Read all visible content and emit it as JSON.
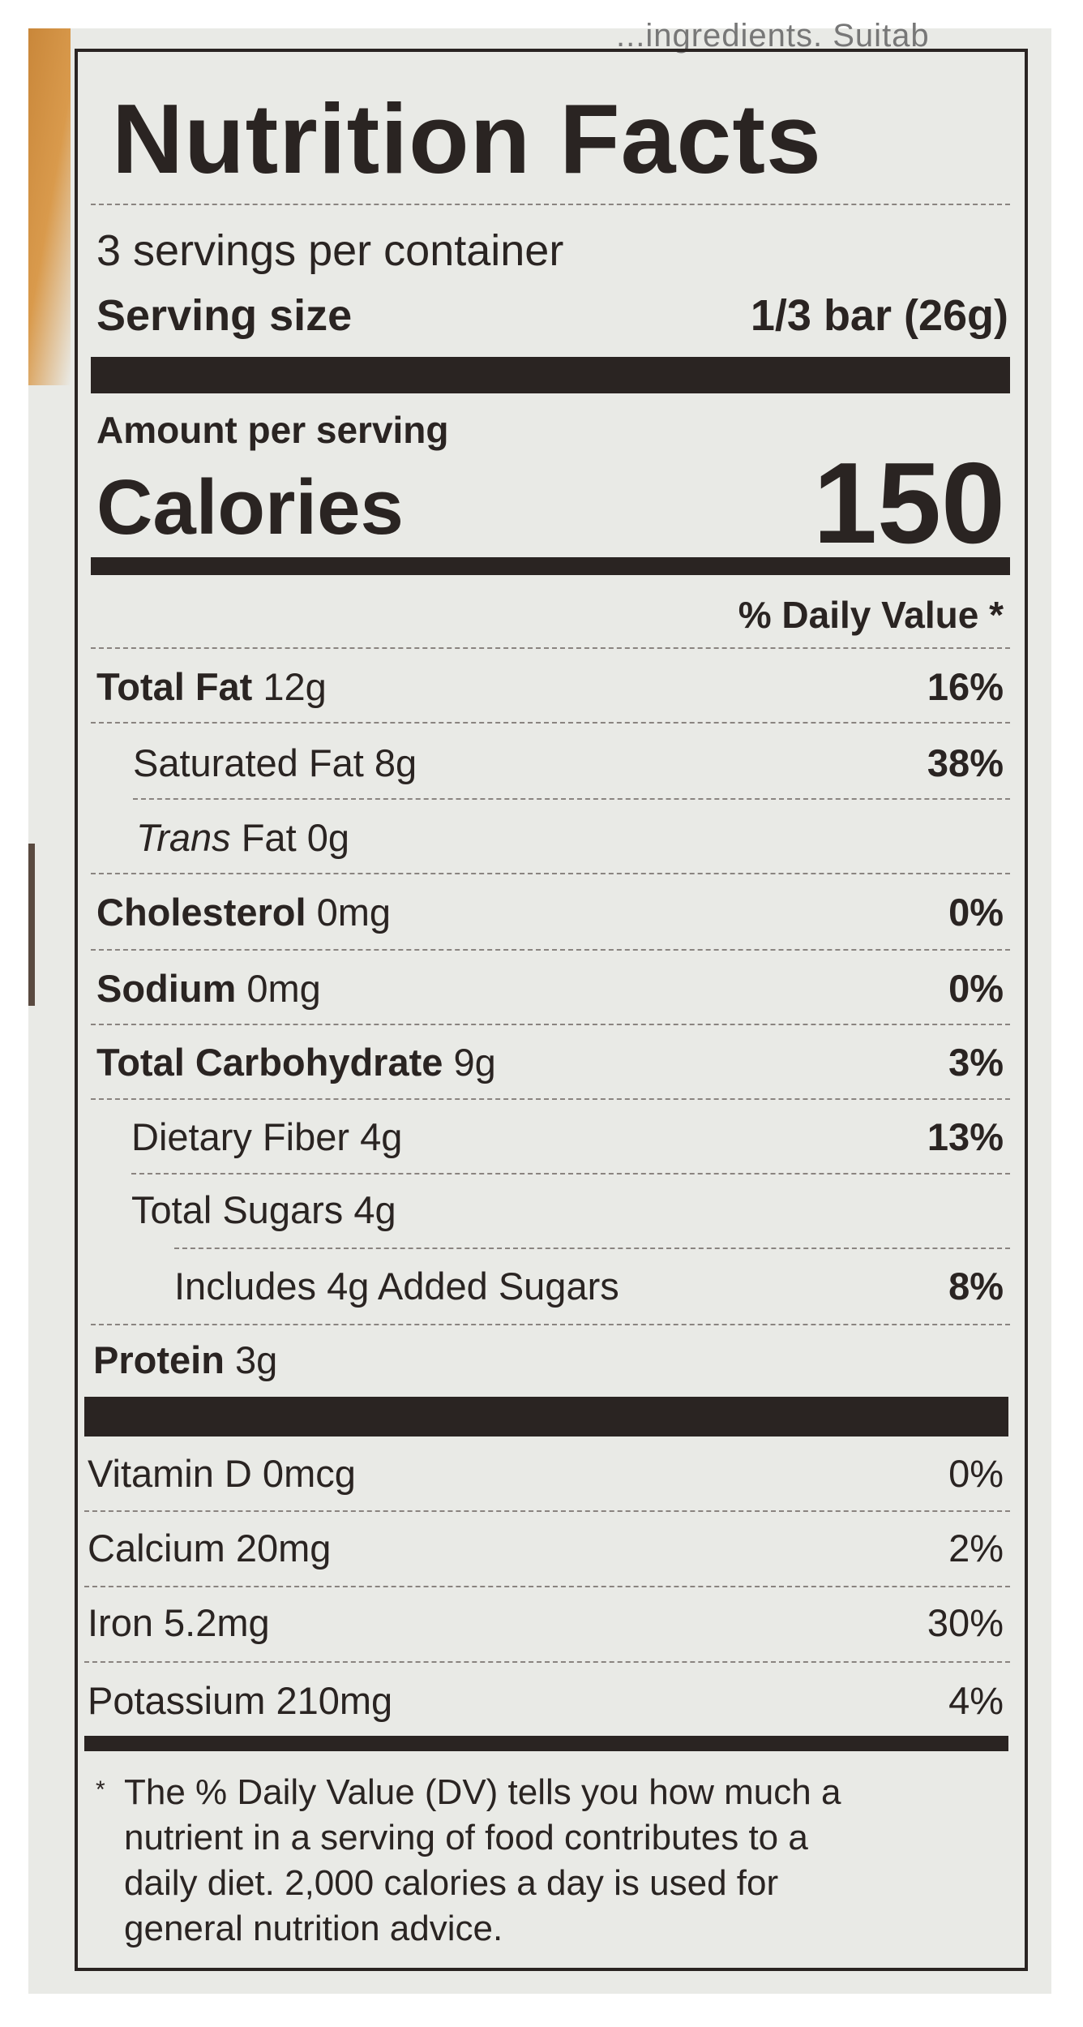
{
  "background_text": "...ingredients. Suitab",
  "title": "Nutrition Facts",
  "servings_per_container": "3 servings per container",
  "serving_size": {
    "label": "Serving size",
    "value": "1/3 bar (26g)"
  },
  "amount_per_serving": "Amount per serving",
  "calories": {
    "label": "Calories",
    "value": "150"
  },
  "daily_value_header": "% Daily Value *",
  "nutrients": [
    {
      "name": "Total Fat",
      "amount": "12g",
      "dv": "16%"
    },
    {
      "name": "Saturated Fat",
      "amount": "8g",
      "dv": "38%"
    },
    {
      "name_italic": "Trans",
      "name": "Fat",
      "amount": "0g",
      "dv": ""
    },
    {
      "name": "Cholesterol",
      "amount": "0mg",
      "dv": "0%"
    },
    {
      "name": "Sodium",
      "amount": "0mg",
      "dv": "0%"
    },
    {
      "name": "Total Carbohydrate",
      "amount": "9g",
      "dv": "3%"
    },
    {
      "name": "Dietary Fiber",
      "amount": "4g",
      "dv": "13%"
    },
    {
      "name": "Total Sugars",
      "amount": "4g",
      "dv": ""
    },
    {
      "name": "Includes 4g Added Sugars",
      "amount": "",
      "dv": "8%"
    },
    {
      "name": "Protein",
      "amount": "3g",
      "dv": ""
    }
  ],
  "vitamins": [
    {
      "name": "Vitamin D 0mcg",
      "dv": "0%"
    },
    {
      "name": "Calcium 20mg",
      "dv": "2%"
    },
    {
      "name": "Iron 5.2mg",
      "dv": "30%"
    },
    {
      "name": "Potassium 210mg",
      "dv": "4%"
    }
  ],
  "footnote": {
    "asterisk": "*",
    "lines": [
      "The % Daily Value (DV) tells you how much a",
      "nutrient in a serving of food contributes to a",
      "daily diet. 2,000 calories a day is used for",
      "general nutrition advice."
    ]
  }
}
